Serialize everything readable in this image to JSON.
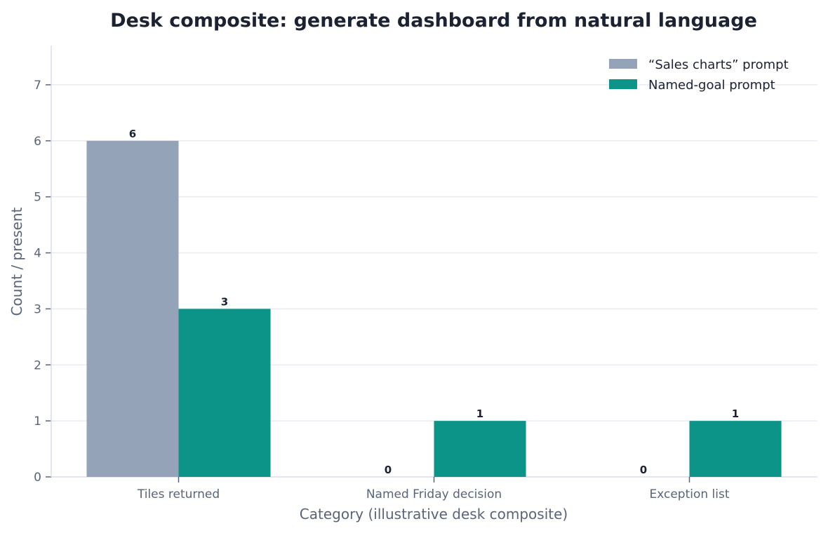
{
  "chart_data": {
    "type": "bar",
    "title": "Desk composite: generate dashboard from natural language",
    "xlabel": "Category (illustrative desk composite)",
    "ylabel": "Count / present",
    "categories": [
      "Tiles returned",
      "Named Friday decision",
      "Exception list"
    ],
    "series": [
      {
        "name": "“Sales charts” prompt",
        "values": [
          6,
          0,
          0
        ],
        "color": "#94a3b8"
      },
      {
        "name": "Named-goal prompt",
        "values": [
          3,
          1,
          1
        ],
        "color": "#0d9488"
      }
    ],
    "ylim": [
      0,
      7.7
    ],
    "yticks": [
      0,
      1,
      2,
      3,
      4,
      5,
      6,
      7
    ],
    "grid": true,
    "legend_position": "top-right",
    "axis_color": "#d8dee8",
    "grid_color": "#e8ecf2"
  }
}
